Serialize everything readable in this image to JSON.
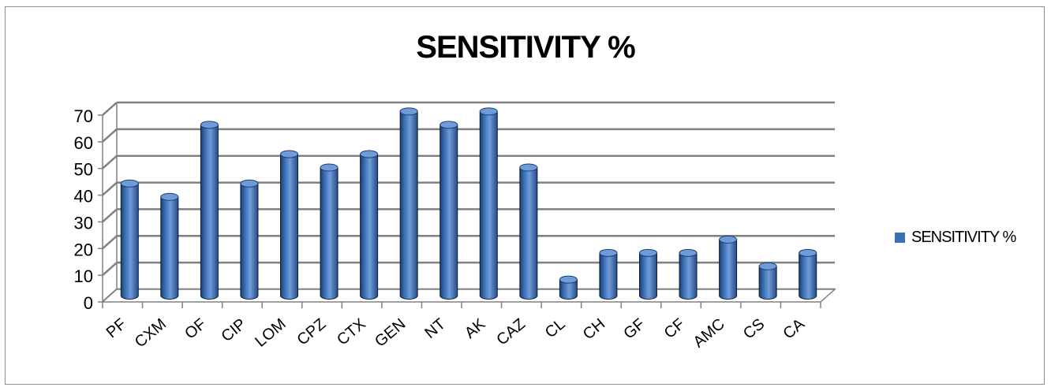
{
  "chart_data": {
    "type": "bar",
    "title": "SENSITIVITY %",
    "categories": [
      "PF",
      "CXM",
      "OF",
      "CIP",
      "LOM",
      "CPZ",
      "CTX",
      "GEN",
      "NT",
      "AK",
      "CAZ",
      "CL",
      "CH",
      "GF",
      "CF",
      "AMC",
      "CS",
      "CA"
    ],
    "series": [
      {
        "name": "SENSITIVITY %",
        "values": [
          42,
          37,
          64,
          42,
          53,
          48,
          53,
          69,
          64,
          69,
          48,
          6,
          16,
          16,
          16,
          21,
          11,
          16
        ]
      }
    ],
    "ylim": [
      0,
      70
    ],
    "yticks": [
      0,
      10,
      20,
      30,
      40,
      50,
      60,
      70
    ],
    "grid": true,
    "legend_position": "right",
    "colors": {
      "bar": "#3a6fb5",
      "bar_dark": "#1f3f6e",
      "bar_light": "#6f9cd9",
      "grid": "#808080"
    }
  }
}
